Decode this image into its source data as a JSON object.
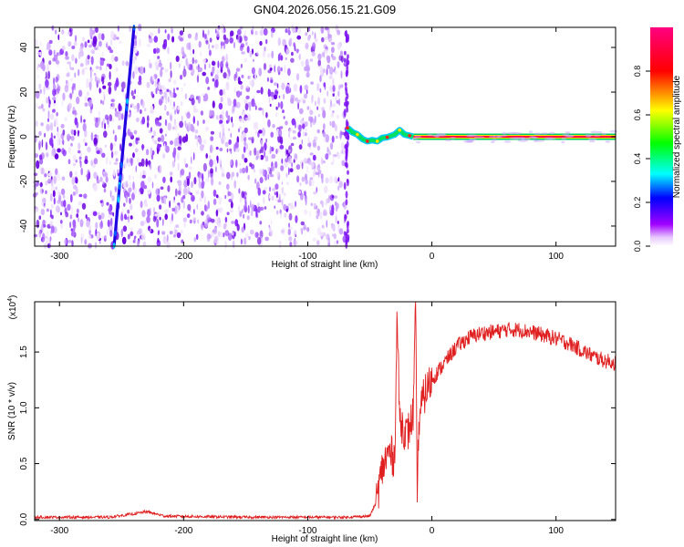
{
  "title": "GN04.2026.056.15.21.G09",
  "chart_data": [
    {
      "type": "heatmap",
      "xlabel": "Height of straight line (km)",
      "ylabel": "Frequency (Hz)",
      "xlim": [
        -320,
        148
      ],
      "ylim": [
        -49,
        49
      ],
      "xticks": [
        -300,
        -200,
        -100,
        0,
        100
      ],
      "yticks": [
        -40,
        -20,
        0,
        20,
        40
      ],
      "colorbar": {
        "label": "Normalized spectral amplitude",
        "range": [
          0,
          1
        ],
        "ticks": [
          "0.0",
          "0.2",
          "0.4",
          "0.6",
          "0.8"
        ],
        "colormap": [
          "#ffffff",
          "#a000ff",
          "#0000ff",
          "#00ffff",
          "#00ff00",
          "#ffff00",
          "#ff0000",
          "#ff0080"
        ]
      },
      "features": {
        "noise_region_x": [
          -320,
          -68
        ],
        "diagonal_line": [
          [
            -256,
            -49
          ],
          [
            -240,
            49
          ]
        ],
        "carrier_x": [
          -68,
          148
        ],
        "carrier_freq": 0
      }
    },
    {
      "type": "line",
      "xlabel": "Height of straight line (km)",
      "ylabel": "SNR (10 * v/v)",
      "y_multiplier": "(x10",
      "y_multiplier_exp": "4",
      "y_multiplier_close": ")",
      "xlim": [
        -320,
        148
      ],
      "ylim": [
        -0.01,
        1.95
      ],
      "xticks": [
        -300,
        -200,
        -100,
        0,
        100
      ],
      "yticks": [
        "0.0",
        "0.5",
        "1.0",
        "1.5"
      ],
      "color": "#e02020",
      "series": [
        {
          "x": [
            -320,
            -260,
            -240,
            -230,
            -215,
            -150,
            -100,
            -70,
            -50,
            -45,
            -40,
            -35,
            -30,
            -28,
            -26,
            -24,
            -20,
            -15,
            -13,
            -12,
            -10,
            -5,
            0,
            10,
            20,
            30,
            40,
            50,
            60,
            70,
            80,
            90,
            100,
            110,
            120,
            130,
            140,
            148
          ],
          "values": [
            0.02,
            0.02,
            0.05,
            0.07,
            0.03,
            0.02,
            0.02,
            0.02,
            0.03,
            0.15,
            0.45,
            0.6,
            0.55,
            1.85,
            0.9,
            0.85,
            0.75,
            0.95,
            1.95,
            0.25,
            0.95,
            1.15,
            1.25,
            1.4,
            1.55,
            1.63,
            1.67,
            1.68,
            1.7,
            1.7,
            1.68,
            1.65,
            1.62,
            1.58,
            1.52,
            1.46,
            1.42,
            1.4
          ]
        }
      ]
    }
  ]
}
